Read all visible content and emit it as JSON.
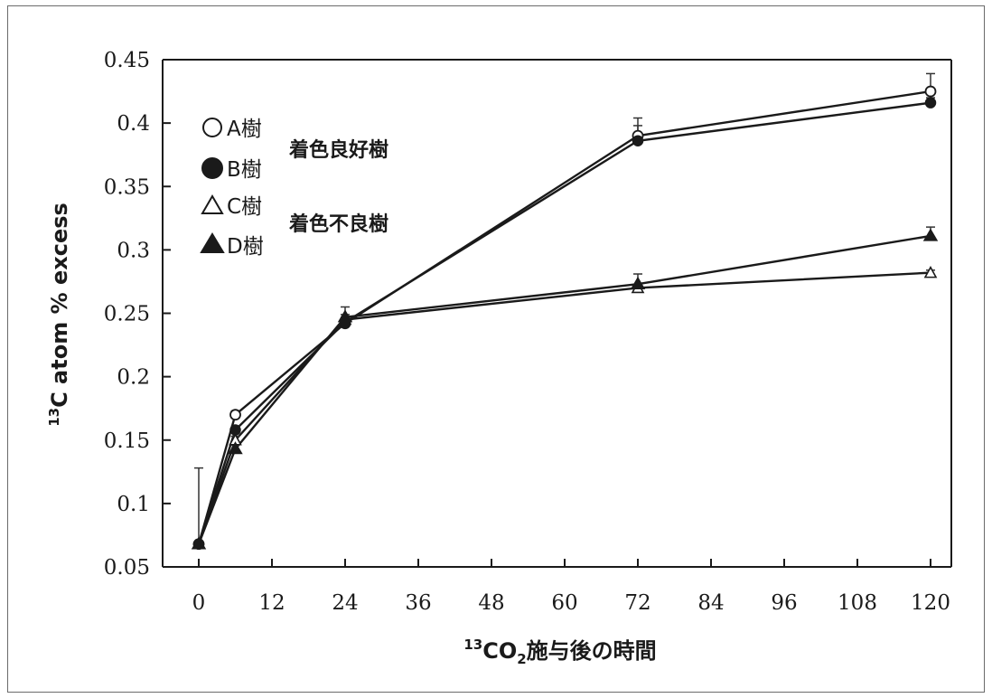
{
  "chart_data": {
    "type": "line",
    "xlabel_main": "CO",
    "xlabel_sup": "13",
    "xlabel_sub": "2",
    "xlabel_rest": "施与後の時間",
    "ylabel_sup": "13",
    "ylabel_rest": "C atom % excess",
    "x_ticks": [
      0,
      12,
      24,
      36,
      48,
      60,
      72,
      84,
      96,
      108,
      120
    ],
    "y_ticks": [
      "0.05",
      "0.1",
      "0.15",
      "0.2",
      "0.25",
      "0.3",
      "0.35",
      "0.4",
      "0.45"
    ],
    "xlim": [
      0,
      120
    ],
    "ylim": [
      0.05,
      0.45
    ],
    "x": [
      0,
      6,
      24,
      72,
      120
    ],
    "series": [
      {
        "name": "A樹",
        "marker": "circle-open",
        "values": [
          0.068,
          0.17,
          0.242,
          0.39,
          0.425
        ],
        "err": [
          0.06,
          0.003,
          0.004,
          0.014,
          0.014
        ]
      },
      {
        "name": "B樹",
        "marker": "circle-filled",
        "values": [
          0.068,
          0.158,
          0.243,
          0.386,
          0.416
        ],
        "err": [
          0.0,
          0.003,
          0.004,
          0.012,
          0.004
        ]
      },
      {
        "name": "C樹",
        "marker": "triangle-open",
        "values": [
          0.068,
          0.15,
          0.245,
          0.27,
          0.282
        ],
        "err": [
          0.0,
          0.003,
          0.004,
          0.003,
          0.002
        ]
      },
      {
        "name": "D樹",
        "marker": "triangle-filled",
        "values": [
          0.068,
          0.143,
          0.247,
          0.273,
          0.311
        ],
        "err": [
          0.0,
          0.003,
          0.008,
          0.008,
          0.007
        ]
      }
    ],
    "group_labels": [
      "着色良好樹",
      "着色不良樹"
    ],
    "grid": false,
    "legend_position": "top-left"
  }
}
